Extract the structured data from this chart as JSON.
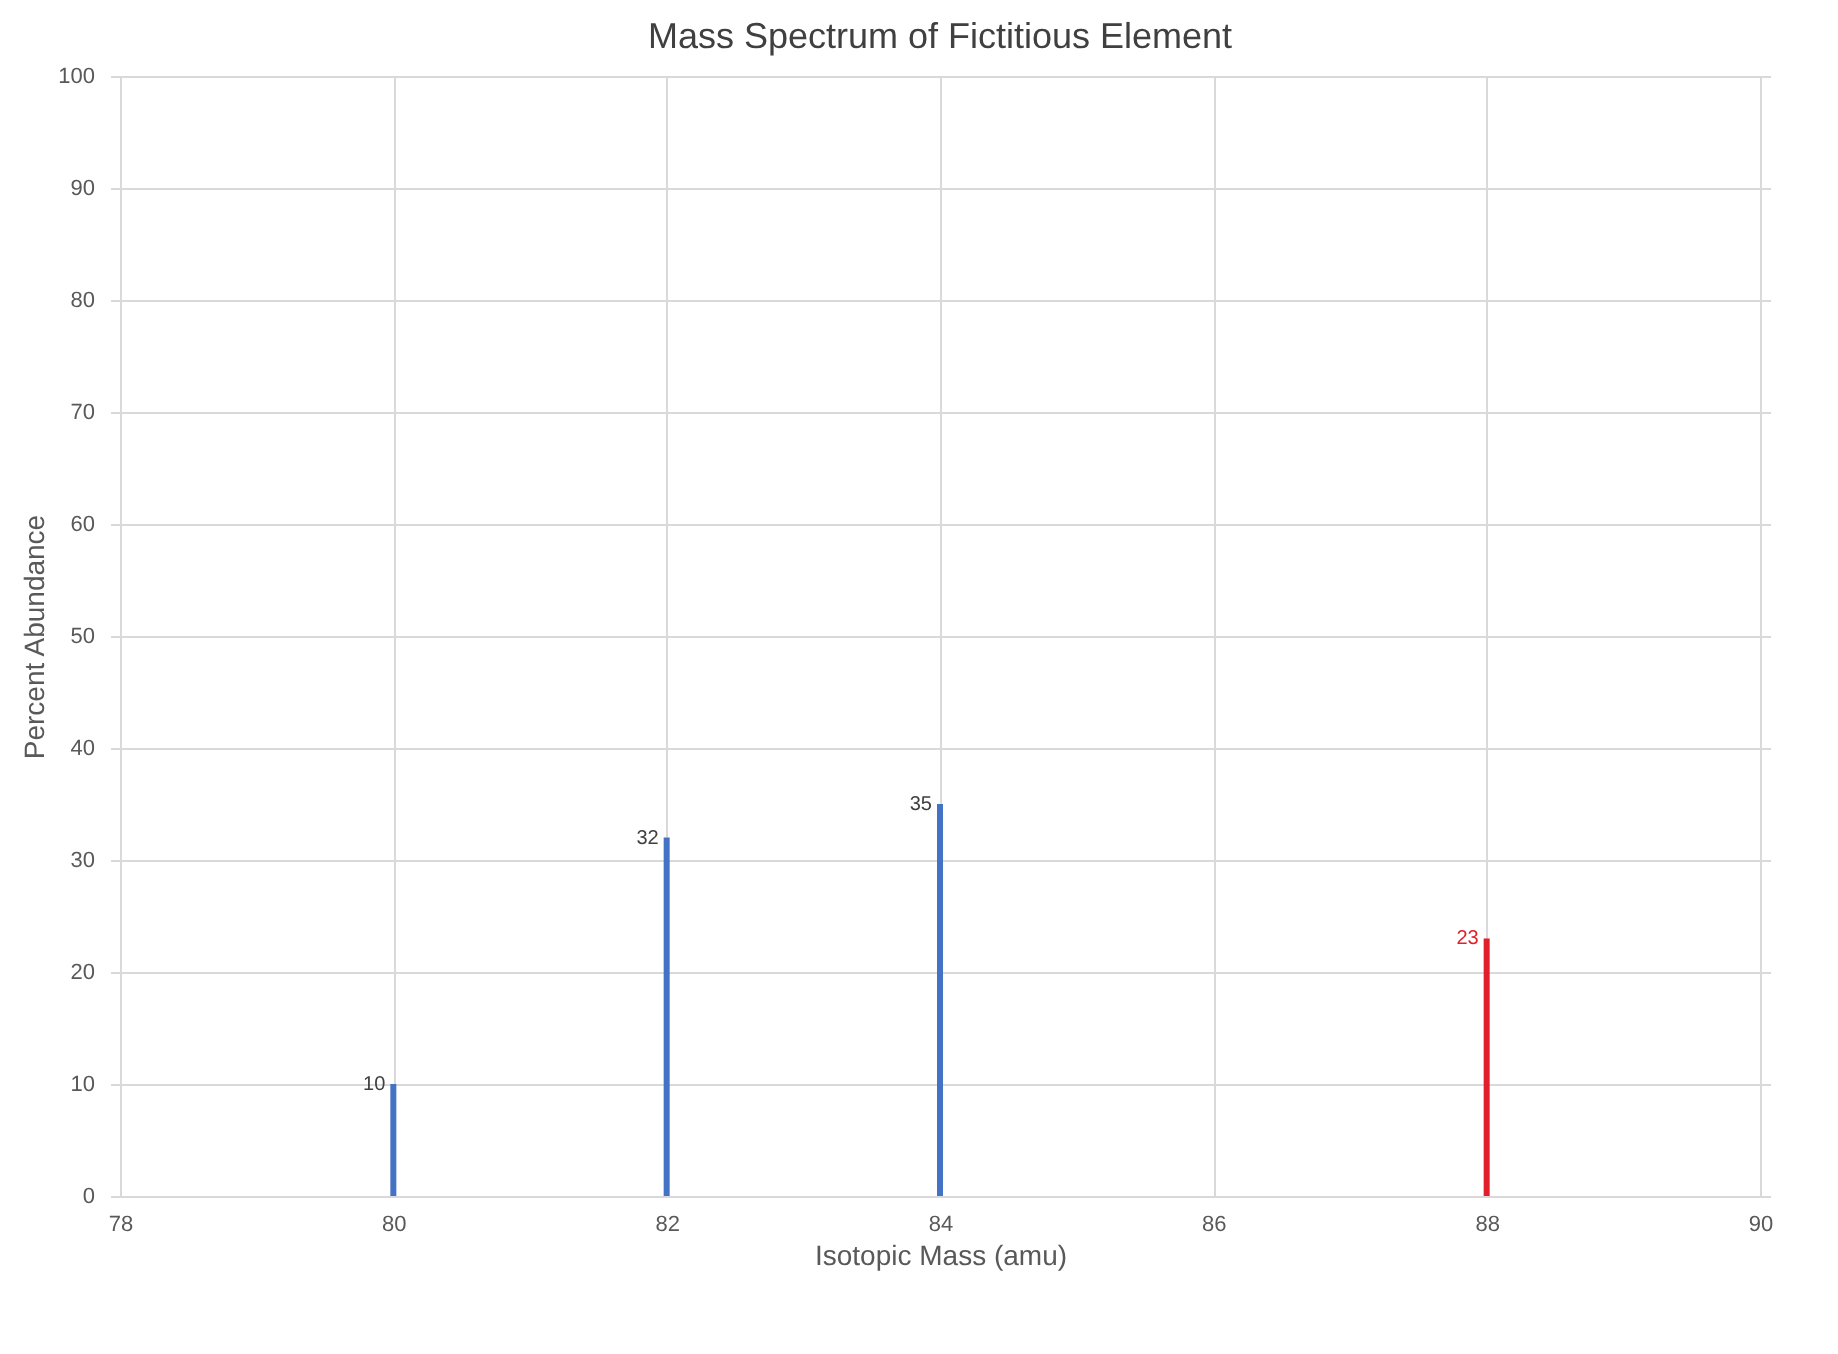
{
  "chart_data": {
    "type": "bar",
    "title": "Mass Spectrum of Fictitious Element",
    "xlabel": "Isotopic Mass (amu)",
    "ylabel": "Percent Abundance",
    "xlim": [
      78,
      90
    ],
    "xticks": [
      78,
      80,
      82,
      84,
      86,
      88,
      90
    ],
    "ylim": [
      0,
      100
    ],
    "yticks": [
      0,
      10,
      20,
      30,
      40,
      50,
      60,
      70,
      80,
      90,
      100
    ],
    "grid": true,
    "data_labels": true,
    "series": [
      {
        "color": "#4472c4",
        "x": [
          80,
          82,
          84
        ],
        "values": [
          10,
          32,
          35
        ]
      },
      {
        "color": "#e0202a",
        "x": [
          88
        ],
        "values": [
          23
        ]
      }
    ]
  }
}
